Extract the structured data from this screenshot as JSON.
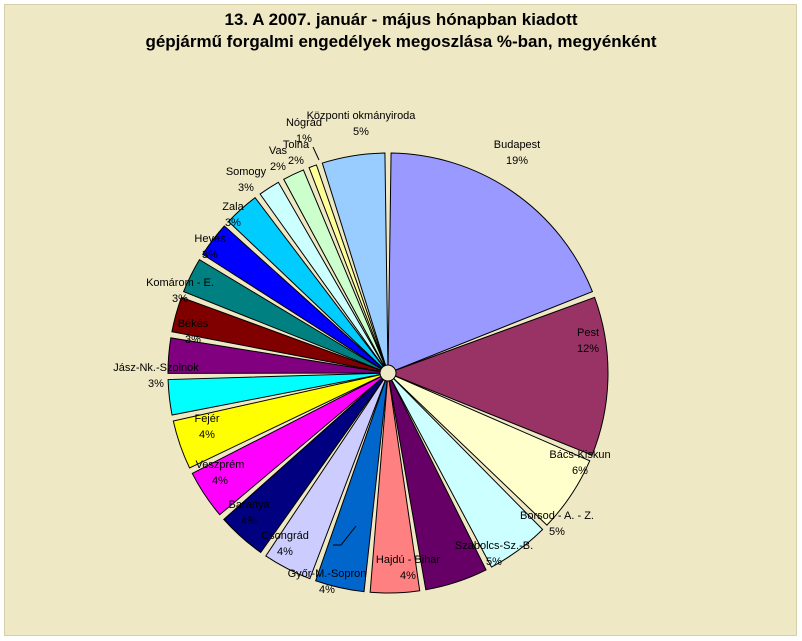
{
  "chart_data": {
    "type": "pie",
    "title": "13. A  2007. január - május hónapban kiadott",
    "subtitle": "gépjármű forgalmi engedélyek megoszlása %-ban, megyénként",
    "exploded": true,
    "legend": "none",
    "slices": [
      {
        "name": "Budapest",
        "value": 19,
        "label": "19%",
        "color": "#9999ff"
      },
      {
        "name": "Pest",
        "value": 12,
        "label": "12%",
        "color": "#993366"
      },
      {
        "name": "Bács-Kiskun",
        "value": 6,
        "label": "6%",
        "color": "#ffffcc"
      },
      {
        "name": "Borsod - A. - Z.",
        "value": 5,
        "label": "5%",
        "color": "#ccffff"
      },
      {
        "name": "Szabolcs-Sz.-B.",
        "value": 5,
        "label": "5%",
        "color": "#660066"
      },
      {
        "name": "Hajdú - Bihar",
        "value": 4,
        "label": "4%",
        "color": "#ff8080"
      },
      {
        "name": "Győr-M.-Sopron",
        "value": 4,
        "label": "4%",
        "color": "#0066cc"
      },
      {
        "name": "Csongrád",
        "value": 4,
        "label": "4%",
        "color": "#ccccff"
      },
      {
        "name": "Baranya",
        "value": 4,
        "label": "4%",
        "color": "#000080"
      },
      {
        "name": "Veszprém",
        "value": 4,
        "label": "4%",
        "color": "#ff00ff"
      },
      {
        "name": "Fejér",
        "value": 4,
        "label": "4%",
        "color": "#ffff00"
      },
      {
        "name": "Jász-Nk.-Szolnok",
        "value": 3,
        "label": "3%",
        "color": "#00ffff"
      },
      {
        "name": "Békés",
        "value": 3,
        "label": "3%",
        "color": "#800080"
      },
      {
        "name": "Komárom - E.",
        "value": 3,
        "label": "3%",
        "color": "#800000"
      },
      {
        "name": "Heves",
        "value": 3,
        "label": "3%",
        "color": "#008080"
      },
      {
        "name": "Zala",
        "value": 3,
        "label": "3%",
        "color": "#0000ff"
      },
      {
        "name": "Somogy",
        "value": 3,
        "label": "3%",
        "color": "#00ccff"
      },
      {
        "name": "Vas",
        "value": 2,
        "label": "2%",
        "color": "#ccffff"
      },
      {
        "name": "Tolna",
        "value": 2,
        "label": "2%",
        "color": "#ccffcc"
      },
      {
        "name": "Nógrád",
        "value": 1,
        "label": "1%",
        "color": "#ffff99"
      },
      {
        "name": "Központi okmányiroda",
        "value": 5,
        "label": "5%",
        "color": "#99ccff"
      }
    ]
  },
  "colors": {
    "chart_background": "#efe8c4",
    "slice_outline": "#000000",
    "text": "#000000"
  }
}
